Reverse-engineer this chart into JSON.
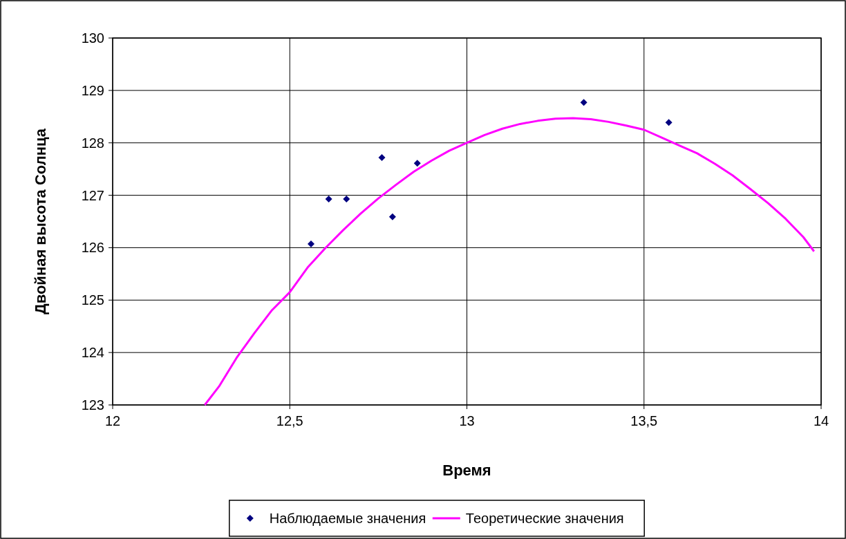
{
  "chart_data": {
    "type": "scatter",
    "xlabel": "Время",
    "ylabel": "Двойная высота Солнца",
    "xlim": [
      12,
      14
    ],
    "ylim": [
      123,
      130
    ],
    "xticks": [
      12,
      {
        "value": 12.5,
        "label": "12,5"
      },
      13,
      {
        "value": 13.5,
        "label": "13,5"
      },
      14
    ],
    "yticks": [
      123,
      124,
      125,
      126,
      127,
      128,
      129,
      130
    ],
    "grid": true,
    "legend": "bottom",
    "series": [
      {
        "name": "Наблюдаемые значения",
        "color": "#000080",
        "marker": "diamond",
        "x": [
          12.56,
          12.61,
          12.66,
          12.76,
          12.79,
          12.86,
          13.33,
          13.57
        ],
        "values": [
          126.07,
          126.93,
          126.93,
          127.72,
          126.59,
          127.61,
          128.77,
          128.39
        ]
      },
      {
        "type": "line",
        "name": "Теоретические значения",
        "color": "#ff00ff",
        "marker": "none",
        "line_style": "solid",
        "x": [
          12.26,
          12.3,
          12.35,
          12.4,
          12.45,
          12.5,
          12.55,
          12.6,
          12.65,
          12.7,
          12.75,
          12.8,
          12.85,
          12.9,
          12.95,
          13,
          13.05,
          13.1,
          13.15,
          13.2,
          13.25,
          13.3,
          13.35,
          13.4,
          13.45,
          13.5,
          13.55,
          13.6,
          13.65,
          13.7,
          13.75,
          13.8,
          13.85,
          13.9,
          13.95,
          13.98
        ],
        "values": [
          123.0,
          123.35,
          123.9,
          124.37,
          124.81,
          125.15,
          125.62,
          125.99,
          126.33,
          126.65,
          126.94,
          127.2,
          127.45,
          127.66,
          127.85,
          128.0,
          128.15,
          128.27,
          128.36,
          128.42,
          128.46,
          128.47,
          128.45,
          128.4,
          128.33,
          128.25,
          128.1,
          127.95,
          127.8,
          127.6,
          127.38,
          127.12,
          126.85,
          126.55,
          126.2,
          125.93
        ]
      }
    ]
  }
}
